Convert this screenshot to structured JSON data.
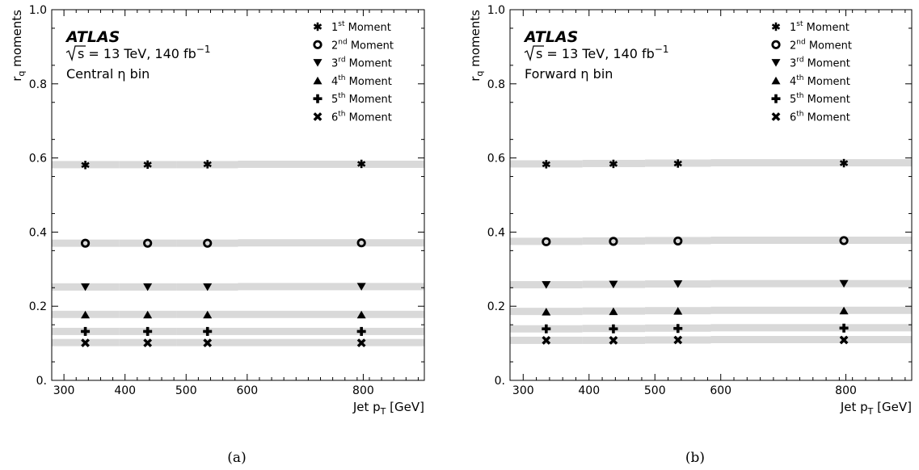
{
  "chart_data": [
    {
      "type": "scatter",
      "caption": "(a)",
      "experiment": "ATLAS",
      "energy_label": "= 13 TeV, 140 fb",
      "energy_sup": "−1",
      "sqrt_s": "s",
      "region_label": "Central η bin",
      "ylabel_main": "r",
      "ylabel_sub": "q",
      "ylabel_tail": " moments",
      "xlabel_main": "Jet p",
      "xlabel_sub": "T",
      "xlabel_tail": " [GeV]",
      "xlim": [
        280,
        890
      ],
      "ylim": [
        0,
        1.0
      ],
      "x_ticks": [
        300,
        400,
        500,
        600,
        800
      ],
      "x_tick_positions": [
        300,
        400,
        500,
        600,
        790
      ],
      "y_ticks": [
        "0.",
        "0.2",
        "0.4",
        "0.6",
        "0.8",
        "1.0"
      ],
      "y_tick_values": [
        0,
        0.2,
        0.4,
        0.6,
        0.8,
        1.0
      ],
      "x": [
        335,
        437,
        535,
        787
      ],
      "legend_position": "top-right",
      "series": [
        {
          "ord": "1",
          "sup": "st",
          "name": "Moment",
          "marker": "star",
          "values": [
            0.581,
            0.582,
            0.583,
            0.584
          ],
          "band": [
            0.582,
            0.582,
            0.582,
            0.583,
            0.584
          ]
        },
        {
          "ord": "2",
          "sup": "nd",
          "name": "Moment",
          "marker": "circle-open",
          "values": [
            0.37,
            0.37,
            0.37,
            0.371
          ],
          "band": [
            0.37,
            0.37,
            0.37,
            0.371,
            0.372
          ]
        },
        {
          "ord": "3",
          "sup": "rd",
          "name": "Moment",
          "marker": "triangle-down",
          "values": [
            0.252,
            0.252,
            0.252,
            0.253
          ],
          "band": [
            0.252,
            0.252,
            0.252,
            0.253,
            0.253
          ]
        },
        {
          "ord": "4",
          "sup": "th",
          "name": "Moment",
          "marker": "triangle-up",
          "values": [
            0.177,
            0.177,
            0.177,
            0.177
          ],
          "band": [
            0.178,
            0.178,
            0.178,
            0.178,
            0.178
          ]
        },
        {
          "ord": "5",
          "sup": "th",
          "name": "Moment",
          "marker": "plus",
          "values": [
            0.132,
            0.132,
            0.132,
            0.132
          ],
          "band": [
            0.132,
            0.132,
            0.132,
            0.132,
            0.132
          ]
        },
        {
          "ord": "6",
          "sup": "th",
          "name": "Moment",
          "marker": "x",
          "values": [
            0.101,
            0.101,
            0.101,
            0.101
          ],
          "band": [
            0.102,
            0.102,
            0.102,
            0.102,
            0.102
          ]
        }
      ],
      "band_edges": [
        280,
        390,
        485,
        585,
        890
      ],
      "band_color": "#d9d9d9"
    },
    {
      "type": "scatter",
      "caption": "(b)",
      "experiment": "ATLAS",
      "energy_label": "= 13 TeV, 140 fb",
      "energy_sup": "−1",
      "sqrt_s": "s",
      "region_label": "Forward η bin",
      "ylabel_main": "r",
      "ylabel_sub": "q",
      "ylabel_tail": " moments",
      "xlabel_main": "Jet p",
      "xlabel_sub": "T",
      "xlabel_tail": " [GeV]",
      "xlim": [
        280,
        890
      ],
      "ylim": [
        0,
        1.0
      ],
      "x_ticks": [
        300,
        400,
        500,
        600,
        800
      ],
      "x_tick_positions": [
        300,
        400,
        500,
        600,
        790
      ],
      "y_ticks": [
        "0.",
        "0.2",
        "0.4",
        "0.6",
        "0.8",
        "1.0"
      ],
      "y_tick_values": [
        0,
        0.2,
        0.4,
        0.6,
        0.8,
        1.0
      ],
      "x": [
        335,
        437,
        535,
        787
      ],
      "legend_position": "top-right",
      "series": [
        {
          "ord": "1",
          "sup": "st",
          "name": "Moment",
          "marker": "star",
          "values": [
            0.583,
            0.584,
            0.585,
            0.586
          ],
          "band": [
            0.584,
            0.585,
            0.586,
            0.587,
            0.588
          ]
        },
        {
          "ord": "2",
          "sup": "nd",
          "name": "Moment",
          "marker": "circle-open",
          "values": [
            0.374,
            0.375,
            0.376,
            0.377
          ],
          "band": [
            0.375,
            0.376,
            0.377,
            0.378,
            0.379
          ]
        },
        {
          "ord": "3",
          "sup": "rd",
          "name": "Moment",
          "marker": "triangle-down",
          "values": [
            0.258,
            0.259,
            0.26,
            0.261
          ],
          "band": [
            0.258,
            0.259,
            0.26,
            0.261,
            0.262
          ]
        },
        {
          "ord": "4",
          "sup": "th",
          "name": "Moment",
          "marker": "triangle-up",
          "values": [
            0.185,
            0.186,
            0.187,
            0.188
          ],
          "band": [
            0.186,
            0.187,
            0.188,
            0.189,
            0.19
          ]
        },
        {
          "ord": "5",
          "sup": "th",
          "name": "Moment",
          "marker": "plus",
          "values": [
            0.139,
            0.139,
            0.14,
            0.141
          ],
          "band": [
            0.139,
            0.14,
            0.141,
            0.142,
            0.142
          ]
        },
        {
          "ord": "6",
          "sup": "th",
          "name": "Moment",
          "marker": "x",
          "values": [
            0.108,
            0.108,
            0.109,
            0.109
          ],
          "band": [
            0.108,
            0.108,
            0.109,
            0.11,
            0.11
          ]
        }
      ],
      "band_edges": [
        280,
        390,
        485,
        585,
        890
      ],
      "band_color": "#d9d9d9"
    }
  ]
}
